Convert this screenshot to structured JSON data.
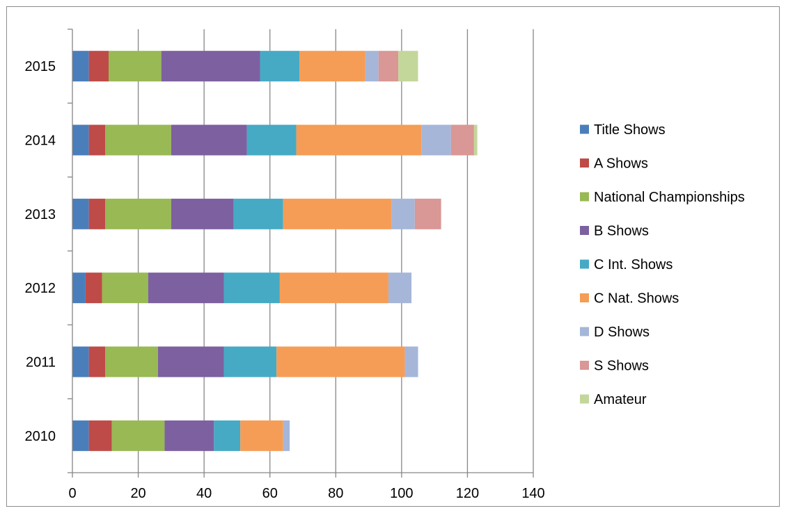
{
  "chart_data": {
    "type": "bar",
    "orientation": "horizontal",
    "stacked": true,
    "title": "",
    "xlabel": "",
    "ylabel": "",
    "xlim": [
      0,
      140
    ],
    "x_ticks": [
      0,
      20,
      40,
      60,
      80,
      100,
      120,
      140
    ],
    "grid": "vertical",
    "legend_position": "right",
    "categories": [
      "2010",
      "2011",
      "2012",
      "2013",
      "2014",
      "2015"
    ],
    "series": [
      {
        "name": "Title Shows",
        "color": "#4a7ebb",
        "values": [
          5,
          5,
          4,
          5,
          5,
          5
        ]
      },
      {
        "name": "A Shows",
        "color": "#be4b48",
        "values": [
          7,
          5,
          5,
          5,
          5,
          6
        ]
      },
      {
        "name": "National Championships",
        "color": "#98b954",
        "values": [
          16,
          16,
          14,
          20,
          20,
          16
        ]
      },
      {
        "name": "B Shows",
        "color": "#7d60a0",
        "values": [
          15,
          20,
          23,
          19,
          23,
          30
        ]
      },
      {
        "name": "C Int. Shows",
        "color": "#46aac5",
        "values": [
          8,
          16,
          17,
          15,
          15,
          12
        ]
      },
      {
        "name": "C Nat. Shows",
        "color": "#f59d56",
        "values": [
          13,
          39,
          33,
          33,
          38,
          20
        ]
      },
      {
        "name": "D Shows",
        "color": "#a5b6d9",
        "values": [
          2,
          4,
          7,
          7,
          9,
          4
        ]
      },
      {
        "name": "S Shows",
        "color": "#d99795",
        "values": [
          0,
          0,
          0,
          8,
          7,
          6
        ]
      },
      {
        "name": "Amateur",
        "color": "#c3d79b",
        "values": [
          0,
          0,
          0,
          0,
          1,
          6
        ]
      }
    ]
  }
}
